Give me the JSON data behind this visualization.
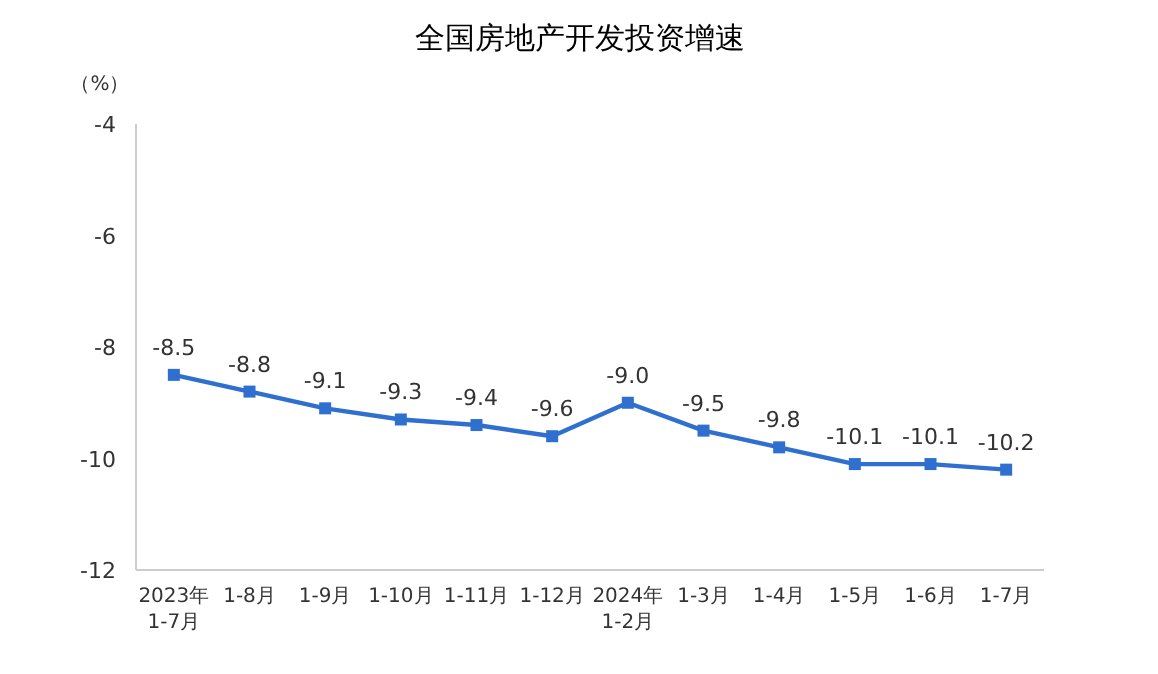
{
  "chart_data": {
    "type": "line",
    "title": "全国房地产开发投资增速",
    "ylabel": "（%）",
    "categories": [
      "2023年\n1-7月",
      "1-8月",
      "1-9月",
      "1-10月",
      "1-11月",
      "1-12月",
      "2024年\n1-2月",
      "1-3月",
      "1-4月",
      "1-5月",
      "1-6月",
      "1-7月"
    ],
    "series": [
      {
        "color": "#2f6fd0",
        "values": [
          -8.5,
          -8.8,
          -9.1,
          -9.3,
          -9.4,
          -9.6,
          -9.0,
          -9.5,
          -9.8,
          -10.1,
          -10.1,
          -10.2
        ],
        "value_labels": [
          "-8.5",
          "-8.8",
          "-9.1",
          "-9.3",
          "-9.4",
          "-9.6",
          "-9.0",
          "-9.5",
          "-9.8",
          "-10.1",
          "-10.1",
          "-10.2"
        ]
      }
    ],
    "ylim": [
      -12,
      -4
    ],
    "yticks": [
      -4,
      -6,
      -8,
      -10,
      -12
    ],
    "marker": "square",
    "line_style": "solid"
  }
}
